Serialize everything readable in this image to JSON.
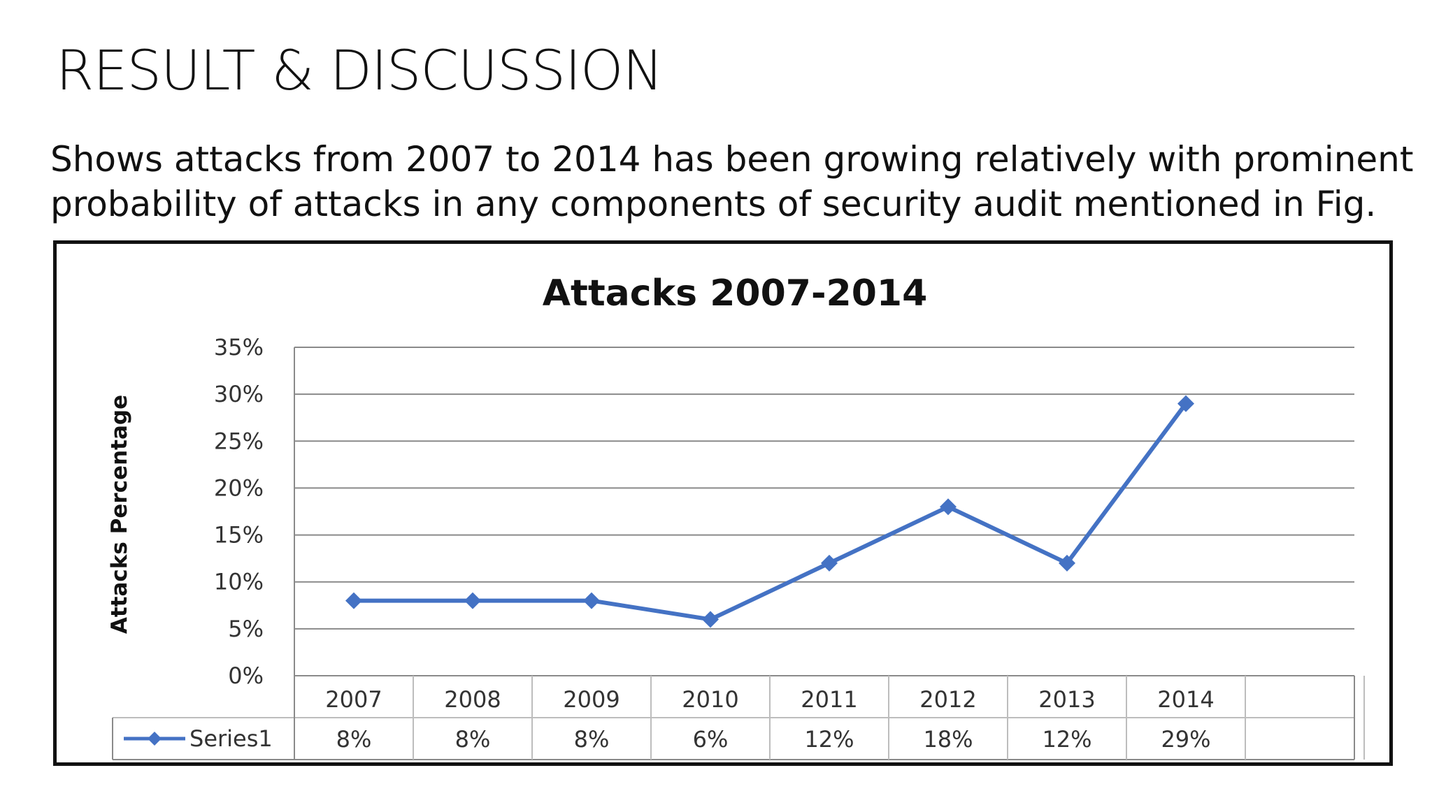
{
  "slide": {
    "title": "RESULT & DISCUSSION",
    "body": "Shows attacks from 2007 to 2014 has been growing relatively with prominent probability of attacks in any components of security audit mentioned in Fig."
  },
  "chart_data": {
    "type": "line",
    "title": "Attacks 2007-2014",
    "xlabel": "",
    "ylabel": "Attacks Percentage",
    "categories": [
      "2007",
      "2008",
      "2009",
      "2010",
      "2011",
      "2012",
      "2013",
      "2014"
    ],
    "series": [
      {
        "name": "Series1",
        "values": [
          8,
          8,
          8,
          6,
          12,
          18,
          12,
          29
        ],
        "labels": [
          "8%",
          "8%",
          "8%",
          "6%",
          "12%",
          "18%",
          "12%",
          "29%"
        ]
      }
    ],
    "yticks": [
      "0%",
      "5%",
      "10%",
      "15%",
      "20%",
      "25%",
      "30%",
      "35%"
    ],
    "ylim": [
      0,
      35
    ],
    "grid": true,
    "legend": "data-table-bottom",
    "line_color": "#4472C4"
  }
}
